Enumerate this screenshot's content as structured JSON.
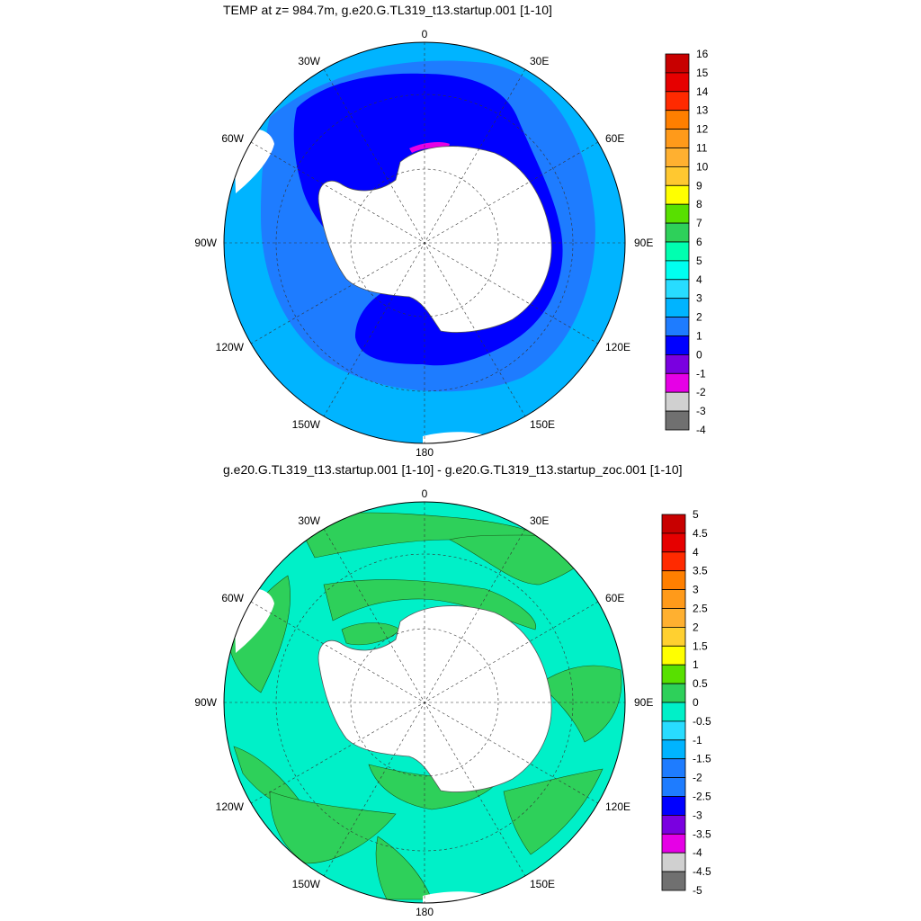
{
  "panels": [
    {
      "title": "TEMP at z= 984.7m, g.e20.G.TL319_t13.startup.001 [1-10]",
      "colorbar": {
        "labels": [
          "16",
          "15",
          "14",
          "13",
          "12",
          "11",
          "10",
          "9",
          "8",
          "7",
          "6",
          "5",
          "4",
          "3",
          "2",
          "1",
          "0",
          "-1",
          "-2",
          "-3",
          "-4"
        ],
        "colors": [
          "#c80000",
          "#e60000",
          "#ff2a00",
          "#ff7f00",
          "#ff9a1a",
          "#ffb030",
          "#ffc830",
          "#ffff00",
          "#58e000",
          "#2ed05a",
          "#00ffb0",
          "#00fff0",
          "#28dcff",
          "#00b4ff",
          "#1e7cff",
          "#0000ff",
          "#7a00e0",
          "#e600e6",
          "#d0d0d0",
          "#707070"
        ]
      },
      "fields": {
        "ocean": "#00b4ff",
        "outer_warm": "#28dcff",
        "mid": "#1e7cff",
        "cold": "#0000ff",
        "very_cold": "#e600e6",
        "land": "#ffffff"
      }
    },
    {
      "title": "g.e20.G.TL319_t13.startup.001 [1-10] - g.e20.G.TL319_t13.startup_zoc.001 [1-10]",
      "colorbar": {
        "labels": [
          "5",
          "4.5",
          "4",
          "3.5",
          "3",
          "2.5",
          "2",
          "1.5",
          "1",
          "0.5",
          "0",
          "-0.5",
          "-1",
          "-1.5",
          "-2",
          "-2.5",
          "-3",
          "-3.5",
          "-4",
          "-4.5",
          "-5"
        ],
        "colors": [
          "#c80000",
          "#e60000",
          "#ff2a00",
          "#ff7f00",
          "#ff9a1a",
          "#ffb030",
          "#ffd030",
          "#ffff00",
          "#58e000",
          "#2ed05a",
          "#00f0c8",
          "#28dcff",
          "#00b4ff",
          "#1e7cff",
          "#1e7cff",
          "#0000ff",
          "#7a00e0",
          "#e600e6",
          "#d0d0d0",
          "#707070"
        ]
      },
      "fields": {
        "ocean": "#00f0c8",
        "positive": "#2ed05a",
        "land": "#ffffff"
      }
    }
  ],
  "map_labels": {
    "top": "0",
    "bottom": "180",
    "left": "90W",
    "right": "90E",
    "ul1": "30W",
    "ul2": "60W",
    "ur1": "30E",
    "ur2": "60E",
    "ll1": "120W",
    "ll2": "150W",
    "lr1": "120E",
    "lr2": "150E"
  }
}
